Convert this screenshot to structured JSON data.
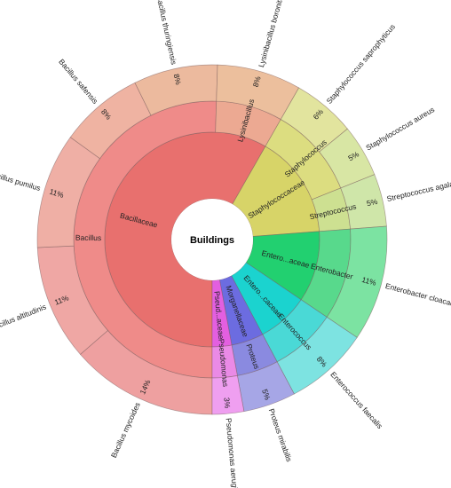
{
  "chart_data": {
    "type": "sunburst",
    "center_label": "Buildings",
    "families": [
      {
        "key": "bacillaceae",
        "label": "Bacillaceae",
        "color": "#e8706e"
      },
      {
        "key": "staphylococcaceae",
        "label": "Staphylococcaceae",
        "color": "#d7d468"
      },
      {
        "key": "enterobacteriaceae",
        "label": "Entero...aceae",
        "color": "#22d070"
      },
      {
        "key": "enterococcaceae",
        "label": "Entero...caceae",
        "color": "#1bd3cf"
      },
      {
        "key": "morganellaceae",
        "label": "Morganellaceae",
        "color": "#6c6ce0"
      },
      {
        "key": "pseudomonadaceae",
        "label": "Pseud...aceae",
        "color": "#e35fe0"
      }
    ],
    "genera": [
      {
        "label": "Bacillus",
        "family": "bacillaceae",
        "color": "#ef8b89"
      },
      {
        "label": "Lysinibacillus",
        "family": "bacillaceae",
        "color": "#eca992"
      },
      {
        "label": "Staphylococcus",
        "family": "staphylococcaceae",
        "color": "#dcdd80"
      },
      {
        "label": "Streptococcus",
        "family": "staphylococcaceae",
        "color": "#cde091"
      },
      {
        "label": "Enterobacter",
        "family": "enterobacteriaceae",
        "color": "#58d98c"
      },
      {
        "label": "Enterococcus",
        "family": "enterococcaceae",
        "color": "#4ad9d6"
      },
      {
        "label": "Proteus",
        "family": "morganellaceae",
        "color": "#8a8ae0"
      },
      {
        "label": "Pseudomonas",
        "family": "pseudomonadaceae",
        "color": "#ea8ae6"
      }
    ],
    "species": [
      {
        "label": "Bacillus mycoides",
        "pct": "14%",
        "value": 14,
        "genus": "Bacillus",
        "color": "#eea0a0"
      },
      {
        "label": "Bacillus altitudinis",
        "pct": "11%",
        "value": 11,
        "genus": "Bacillus",
        "color": "#efa7a4"
      },
      {
        "label": "Bacillus pumilus",
        "pct": "11%",
        "value": 11,
        "genus": "Bacillus",
        "color": "#efafa5"
      },
      {
        "label": "Bacillus safensis",
        "pct": "8%",
        "value": 8,
        "genus": "Bacillus",
        "color": "#efb3a2"
      },
      {
        "label": "Bacillus thuringiensis",
        "pct": "8%",
        "value": 8,
        "genus": "Bacillus",
        "color": "#ecba9e"
      },
      {
        "label": "Lysinibacillus boronitolerans",
        "pct": "8%",
        "value": 8,
        "genus": "Lysinibacillus",
        "color": "#ecbf9d"
      },
      {
        "label": "Staphylococcus saprophyticus",
        "pct": "6%",
        "value": 6,
        "genus": "Staphylococcus",
        "color": "#e2e49e"
      },
      {
        "label": "Staphylococcus aureus",
        "pct": "5%",
        "value": 5,
        "genus": "Staphylococcus",
        "color": "#d8e6a4"
      },
      {
        "label": "Streptococcus agalactiae",
        "pct": "5%",
        "value": 5,
        "genus": "Streptococcus",
        "color": "#cfe6a9"
      },
      {
        "label": "Enterobacter cloacae",
        "pct": "11%",
        "value": 11,
        "genus": "Enterobacter",
        "color": "#7ce3a2"
      },
      {
        "label": "Enterococcus faecalis",
        "pct": "8%",
        "value": 8,
        "genus": "Enterococcus",
        "color": "#7de3e1"
      },
      {
        "label": "Proteus mirabilis",
        "pct": "5%",
        "value": 5,
        "genus": "Proteus",
        "color": "#a6a6e6"
      },
      {
        "label": "Pseudomonas aeruginosa",
        "pct": "3%",
        "value": 3,
        "genus": "Pseudomonas",
        "color": "#ef9ff0"
      }
    ]
  }
}
